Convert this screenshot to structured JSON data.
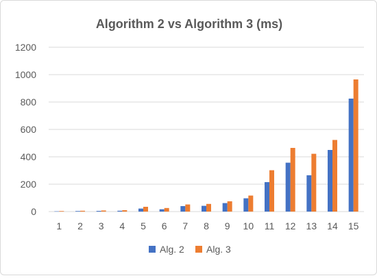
{
  "chart_data": {
    "type": "bar",
    "title": "Algorithm 2 vs Algorithm 3 (ms)",
    "xlabel": "",
    "ylabel": "",
    "categories": [
      "1",
      "2",
      "3",
      "4",
      "5",
      "6",
      "7",
      "8",
      "9",
      "10",
      "11",
      "12",
      "13",
      "14",
      "15"
    ],
    "series": [
      {
        "name": "Alg. 2",
        "color": "#4472c4",
        "values": [
          2,
          4,
          5,
          6,
          22,
          17,
          40,
          42,
          62,
          97,
          215,
          357,
          265,
          450,
          825
        ]
      },
      {
        "name": "Alg. 3",
        "color": "#ed7d31",
        "values": [
          4,
          6,
          8,
          10,
          35,
          26,
          52,
          56,
          75,
          117,
          302,
          465,
          422,
          523,
          965
        ]
      }
    ],
    "ylim": [
      0,
      1200
    ],
    "yticks": [
      0,
      200,
      400,
      600,
      800,
      1000,
      1200
    ],
    "grid": true,
    "legend_position": "bottom"
  }
}
